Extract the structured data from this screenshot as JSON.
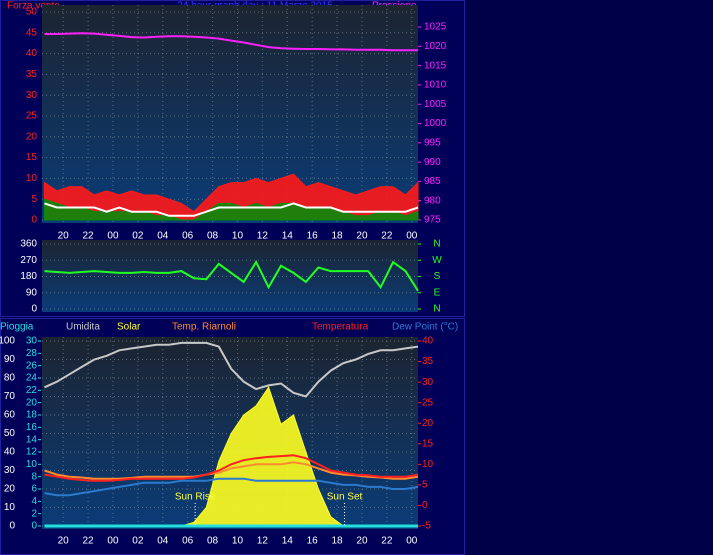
{
  "chart_data": [
    {
      "type": "line",
      "title": "24 hour graph day : 11 Marzo 2015",
      "ylabel": "Forza vento",
      "x": [
        18.5,
        19.5,
        20.5,
        21.5,
        22.5,
        23.5,
        24.5,
        25.5,
        26.5,
        27.5,
        28.5,
        29.5,
        30.5,
        31.5,
        32.5,
        33.5,
        34.5,
        35.5,
        36.5,
        37.5,
        38.5,
        39.5,
        40.5,
        41.5,
        42.5,
        43.5,
        44.5,
        45.5,
        46.5,
        47.5,
        48.5
      ],
      "xlim": [
        18.3,
        48.5
      ],
      "xticks": [
        20,
        22,
        {
          "value": 24,
          "label": "00"
        },
        {
          "value": 26,
          "label": "02"
        },
        {
          "value": 28,
          "label": "04"
        },
        {
          "value": 30,
          "label": "06"
        },
        {
          "value": 32,
          "label": "08"
        },
        {
          "value": 34,
          "label": "10"
        },
        {
          "value": 36,
          "label": "12"
        },
        {
          "value": 38,
          "label": "14"
        },
        {
          "value": 40,
          "label": "16"
        },
        {
          "value": 42,
          "label": "18"
        },
        {
          "value": 44,
          "label": "20"
        },
        {
          "value": 46,
          "label": "22"
        },
        {
          "value": 48,
          "label": "00"
        }
      ],
      "ylim": [
        0,
        50
      ],
      "yticks": [
        0,
        5,
        10,
        15,
        20,
        25,
        30,
        35,
        40,
        45,
        50
      ],
      "y2lim": [
        975,
        1028.9
      ],
      "y2ticks": [
        975,
        980,
        985,
        990,
        995,
        1000,
        1005,
        1010,
        1015,
        1020,
        1025
      ],
      "grid": true,
      "series": [
        {
          "color": "#ff1a1a",
          "style": "area",
          "values": [
            9,
            7,
            8,
            8,
            6,
            7,
            6,
            7,
            6,
            6,
            5,
            4,
            2,
            5,
            8,
            9,
            9,
            10,
            9,
            10,
            11,
            8,
            9,
            8,
            7,
            6,
            7,
            8,
            8,
            6,
            9
          ]
        },
        {
          "color": "#0a8a0a",
          "style": "area",
          "values": [
            5,
            4,
            3,
            3,
            2,
            2,
            2,
            2,
            2,
            1,
            1,
            0,
            0,
            2,
            4,
            4,
            3,
            4,
            3,
            4,
            4,
            3,
            3,
            3,
            2,
            1,
            1,
            2,
            2,
            1,
            2
          ]
        },
        {
          "color": "#ffffff",
          "style": "line",
          "values": [
            4,
            3,
            3,
            3,
            3,
            2,
            3,
            2,
            2,
            2,
            1,
            1,
            1,
            2,
            3,
            3,
            3,
            3,
            3,
            3,
            4,
            3,
            3,
            3,
            2,
            2,
            2,
            2,
            2,
            2,
            3
          ]
        },
        {
          "name": "Pressione",
          "color": "#ff20ff",
          "style": "line",
          "axis": "y2",
          "values": [
            1023.2,
            1023.2,
            1023.3,
            1023.4,
            1023.3,
            1023,
            1022.7,
            1022.4,
            1022.3,
            1022.5,
            1022.6,
            1022.6,
            1022.5,
            1022.3,
            1022,
            1021.5,
            1021,
            1020.4,
            1019.8,
            1019.5,
            1019.4,
            1019.3,
            1019.3,
            1019.2,
            1019.2,
            1019.1,
            1019.1,
            1019.1,
            1019,
            1019,
            1019
          ]
        }
      ]
    },
    {
      "type": "line",
      "x": [
        18.5,
        19.5,
        20.5,
        21.5,
        22.5,
        23.5,
        24.5,
        25.5,
        26.5,
        27.5,
        28.5,
        29.5,
        30.5,
        31.5,
        32.5,
        33.5,
        34.5,
        35.5,
        36.5,
        37.5,
        38.5,
        39.5,
        40.5,
        41.5,
        42.5,
        43.5,
        44.5,
        45.5,
        46.5,
        47.5,
        48.5
      ],
      "xlim": [
        18.3,
        48.5
      ],
      "ylim": [
        0,
        360
      ],
      "yticks": [
        0,
        90,
        180,
        270,
        360
      ],
      "y2lim": [
        0,
        360
      ],
      "y2ticks": [
        {
          "value": 360,
          "label": "N"
        },
        {
          "value": 270,
          "label": "W"
        },
        {
          "value": 180,
          "label": "S"
        },
        {
          "value": 90,
          "label": "E"
        },
        {
          "value": 0,
          "label": "N"
        }
      ],
      "grid": true,
      "series": [
        {
          "color": "#22ff22",
          "style": "line",
          "values": [
            210,
            205,
            200,
            205,
            210,
            205,
            200,
            200,
            205,
            200,
            200,
            210,
            170,
            165,
            250,
            200,
            150,
            260,
            120,
            240,
            200,
            150,
            230,
            210,
            210,
            210,
            210,
            120,
            260,
            210,
            100
          ]
        }
      ]
    },
    {
      "type": "line",
      "x": [
        18.5,
        19.5,
        20.5,
        21.5,
        22.5,
        23.5,
        24.5,
        25.5,
        26.5,
        27.5,
        28.5,
        29.5,
        30.5,
        31.5,
        32.5,
        33.5,
        34.5,
        35.5,
        36.5,
        37.5,
        38.5,
        39.5,
        40.5,
        41.5,
        42.5,
        43.5,
        44.5,
        45.5,
        46.5,
        47.5,
        48.5
      ],
      "xlim": [
        18.3,
        48.5
      ],
      "xticks": [
        20,
        22,
        {
          "value": 24,
          "label": "00"
        },
        {
          "value": 26,
          "label": "02"
        },
        {
          "value": 28,
          "label": "04"
        },
        {
          "value": 30,
          "label": "06"
        },
        {
          "value": 32,
          "label": "08"
        },
        {
          "value": 34,
          "label": "10"
        },
        {
          "value": 36,
          "label": "12"
        },
        {
          "value": 38,
          "label": "14"
        },
        {
          "value": 40,
          "label": "16"
        },
        {
          "value": 42,
          "label": "18"
        },
        {
          "value": 44,
          "label": "20"
        },
        {
          "value": 46,
          "label": "22"
        },
        {
          "value": 48,
          "label": "00"
        }
      ],
      "ylim": [
        0,
        100
      ],
      "yticks": [
        0,
        10,
        20,
        30,
        40,
        50,
        60,
        70,
        80,
        90,
        100
      ],
      "y3lim": [
        0,
        30
      ],
      "y3ticks": [
        0,
        2,
        4,
        6,
        8,
        10,
        12,
        14,
        16,
        18,
        20,
        22,
        24,
        26,
        28,
        30
      ],
      "y2lim": [
        -5,
        40
      ],
      "y2ticks": [
        -5,
        0,
        5,
        10,
        15,
        20,
        25,
        30,
        35,
        40
      ],
      "grid": true,
      "series": [
        {
          "name": "Solar",
          "color": "#ffff20",
          "style": "area",
          "values": [
            0,
            0,
            0,
            0,
            0,
            0,
            0,
            0,
            0,
            0,
            0,
            0,
            2,
            10,
            35,
            50,
            60,
            65,
            75,
            55,
            60,
            40,
            20,
            5,
            0,
            0,
            0,
            0,
            0,
            0,
            0
          ]
        },
        {
          "name": "Umidita",
          "color": "#c8c8c8",
          "style": "line",
          "values": [
            75,
            78,
            82,
            86,
            90,
            92,
            95,
            96,
            97,
            98,
            98,
            99,
            99,
            99,
            97,
            85,
            78,
            74,
            76,
            77,
            72,
            70,
            78,
            84,
            88,
            90,
            93,
            95,
            95,
            96,
            97
          ]
        },
        {
          "name": "Dew Point (°C)",
          "color": "#2a7ad0",
          "style": "line",
          "axis": "y2",
          "values": [
            3,
            2.5,
            2.5,
            3,
            3.5,
            4,
            4.5,
            5,
            5.5,
            5.5,
            5.5,
            6,
            6,
            6,
            6.5,
            6.5,
            6.5,
            6,
            6,
            6,
            6,
            6,
            6,
            5.5,
            5,
            5,
            4.5,
            4.5,
            4,
            4,
            4.5
          ]
        },
        {
          "name": "Temp. Riarnoli",
          "color": "#ff8a30",
          "style": "line",
          "axis": "y2",
          "values": [
            8.5,
            7.5,
            7,
            6.8,
            6.5,
            6.5,
            6.5,
            6.7,
            7,
            7,
            7,
            7,
            7,
            7.5,
            8,
            9,
            9.5,
            10,
            10,
            10,
            10.5,
            10,
            9,
            8,
            7.5,
            7.3,
            7,
            6.8,
            6.5,
            6.5,
            7
          ]
        },
        {
          "name": "Temperatura",
          "color": "#ff2020",
          "style": "line",
          "axis": "y2",
          "values": [
            7.5,
            7,
            6.5,
            6.2,
            6,
            6,
            6.2,
            6.5,
            6.5,
            6.5,
            6.5,
            6.5,
            6.8,
            7.5,
            8.5,
            10,
            11,
            11.5,
            11.8,
            12,
            12.2,
            11.5,
            10,
            8.5,
            8,
            7.5,
            7.3,
            7,
            7,
            7,
            7.5
          ]
        },
        {
          "name": "Pioggia",
          "color": "#20e0e0",
          "style": "line",
          "axis": "y3",
          "values": [
            0,
            0,
            0,
            0,
            0,
            0,
            0,
            0,
            0,
            0,
            0,
            0,
            0,
            0,
            0,
            0,
            0,
            0,
            0,
            0,
            0,
            0,
            0,
            0,
            0,
            0,
            0,
            0,
            0,
            0,
            0
          ]
        }
      ],
      "annotations": [
        {
          "text": "Sun Rise",
          "x": 30.6
        },
        {
          "text": "Sun Set",
          "x": 42.6
        }
      ]
    }
  ]
}
